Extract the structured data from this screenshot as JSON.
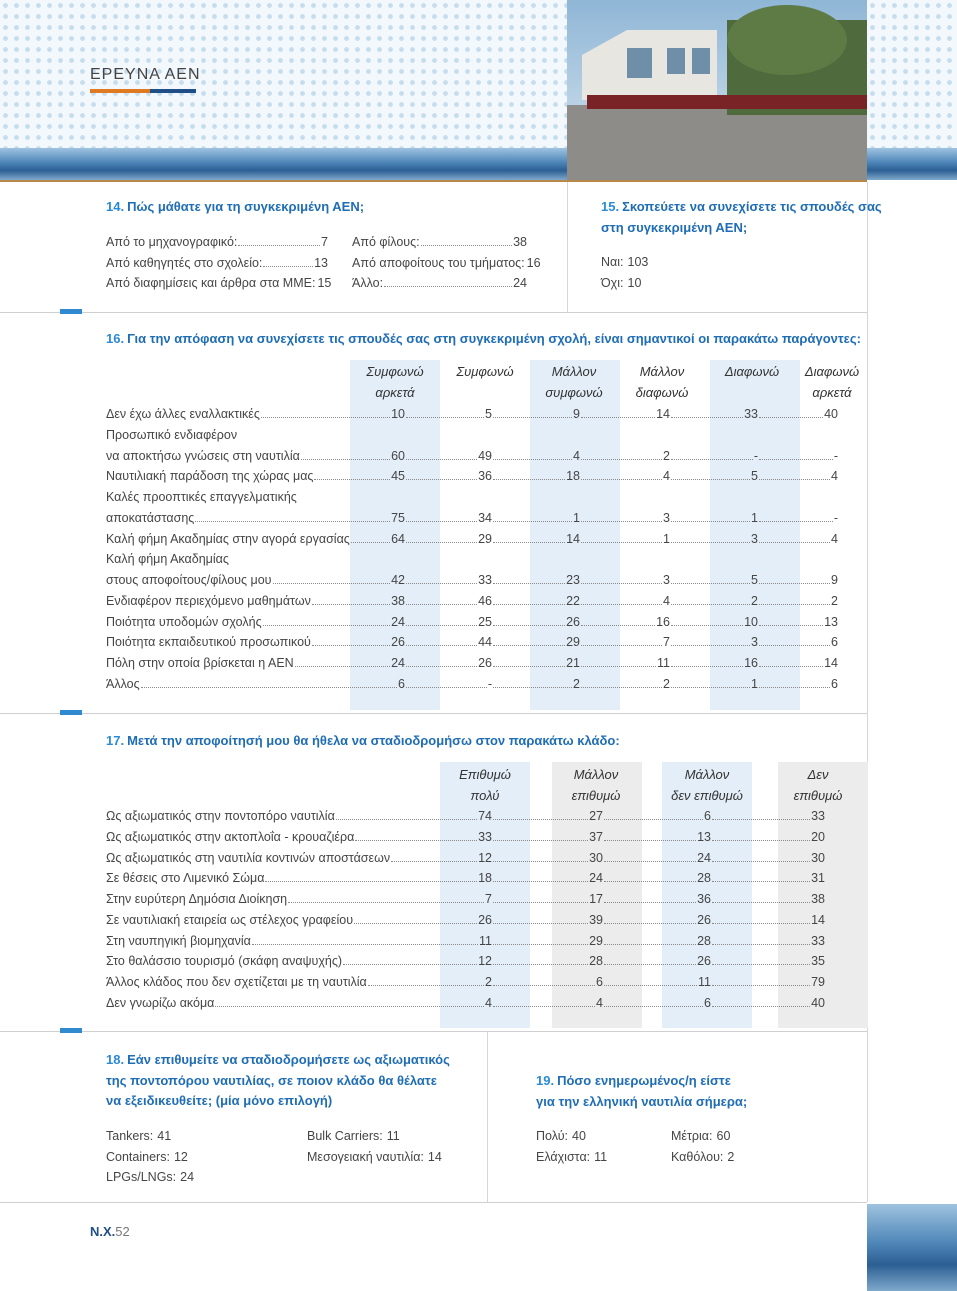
{
  "header": {
    "section": "ΕΡΕΥΝΑ ΑΕΝ"
  },
  "q14": {
    "number": "14.",
    "title": "Πώς μάθατε για τη συγκεκριμένη ΑΕΝ;",
    "columns": [
      [
        {
          "label": "Από το μηχανογραφικό:",
          "value": 7
        },
        {
          "label": "Από καθηγητές στο σχολείο:",
          "value": 13
        },
        {
          "label": "Από διαφημίσεις και άρθρα στα ΜΜΕ:",
          "value": 15
        }
      ],
      [
        {
          "label": "Από φίλους:",
          "value": 38
        },
        {
          "label": "Από αποφοίτους του τμήματος:",
          "value": 16
        },
        {
          "label": "Άλλο:",
          "value": 24
        }
      ]
    ]
  },
  "q15": {
    "number": "15.",
    "title": [
      "Σκοπεύετε να συνεχίσετε τις σπουδές σας",
      "στη συγκεκριμένη ΑΕΝ;"
    ],
    "answers": [
      {
        "label": "Ναι:",
        "value": 103
      },
      {
        "label": "Όχι:",
        "value": 10
      }
    ]
  },
  "q16": {
    "number": "16.",
    "title": "Για την  απόφαση να συνεχίσετε τις σπουδές σας στη συγκεκριμένη σχολή, είναι σημαντικοί οι παρακάτω παράγοντες:",
    "columns": [
      [
        "Συμφωνώ",
        "αρκετά"
      ],
      [
        "Συμφωνώ"
      ],
      [
        "Μάλλον",
        "συμφωνώ"
      ],
      [
        "Μάλλον",
        "διαφωνώ"
      ],
      [
        "Διαφωνώ"
      ],
      [
        "Διαφωνώ",
        "αρκετά"
      ]
    ],
    "rows": [
      {
        "label": [
          "Δεν έχω άλλες εναλλακτικές"
        ],
        "values": [
          10,
          5,
          9,
          14,
          33,
          40
        ]
      },
      {
        "label": [
          "Προσωπικό ενδιαφέρον",
          "να αποκτήσω γνώσεις στη ναυτιλία"
        ],
        "values": [
          60,
          49,
          4,
          2,
          "-",
          "-"
        ]
      },
      {
        "label": [
          "Ναυτιλιακή παράδοση της χώρας μας"
        ],
        "values": [
          45,
          36,
          18,
          4,
          5,
          4
        ]
      },
      {
        "label": [
          "Καλές προοπτικές επαγγελματικής",
          "αποκατάστασης"
        ],
        "values": [
          75,
          34,
          1,
          3,
          1,
          "-"
        ]
      },
      {
        "label": [
          "Καλή φήμη Ακαδημίας στην αγορά εργασίας"
        ],
        "values": [
          64,
          29,
          14,
          1,
          3,
          4
        ]
      },
      {
        "label": [
          "Καλή φήμη Ακαδημίας",
          "στους αποφοίτους/φίλους μου"
        ],
        "values": [
          42,
          33,
          23,
          3,
          5,
          9
        ]
      },
      {
        "label": [
          "Ενδιαφέρον περιεχόμενο μαθημάτων"
        ],
        "values": [
          38,
          46,
          22,
          4,
          2,
          2
        ]
      },
      {
        "label": [
          "Ποιότητα υποδομών σχολής"
        ],
        "values": [
          24,
          25,
          26,
          16,
          10,
          13
        ]
      },
      {
        "label": [
          "Ποιότητα εκπαιδευτικού προσωπικού"
        ],
        "values": [
          26,
          44,
          29,
          7,
          3,
          6
        ]
      },
      {
        "label": [
          "Πόλη στην οποία βρίσκεται η ΑΕΝ"
        ],
        "values": [
          24,
          26,
          21,
          11,
          16,
          14
        ]
      },
      {
        "label": [
          "Άλλος"
        ],
        "values": [
          6,
          "-",
          2,
          2,
          1,
          6
        ]
      }
    ]
  },
  "q17": {
    "number": "17.",
    "title": "Μετά την αποφοίτησή μου θα ήθελα να σταδιοδρομήσω στον παρακάτω κλάδο:",
    "columns": [
      [
        "Επιθυμώ",
        "πολύ"
      ],
      [
        "Μάλλον",
        "επιθυμώ"
      ],
      [
        "Μάλλον",
        "δεν επιθυμώ"
      ],
      [
        "Δεν",
        "επιθυμώ"
      ]
    ],
    "rows": [
      {
        "label": [
          "Ως αξιωματικός στην ποντοπόρο ναυτιλία"
        ],
        "values": [
          74,
          27,
          6,
          33
        ]
      },
      {
        "label": [
          "Ως αξιωματικός στην ακτοπλοΐα - κρουαζιέρα"
        ],
        "values": [
          33,
          37,
          13,
          20
        ]
      },
      {
        "label": [
          "Ως αξιωματικός στη ναυτιλία κοντινών αποστάσεων"
        ],
        "values": [
          12,
          30,
          24,
          30
        ]
      },
      {
        "label": [
          "Σε θέσεις στο Λιμενικό Σώμα"
        ],
        "values": [
          18,
          24,
          28,
          31
        ]
      },
      {
        "label": [
          "Στην ευρύτερη Δημόσια Διοίκηση"
        ],
        "values": [
          7,
          17,
          36,
          38
        ]
      },
      {
        "label": [
          "Σε ναυτιλιακή εταιρεία ως στέλεχος γραφείου"
        ],
        "values": [
          26,
          39,
          26,
          14
        ]
      },
      {
        "label": [
          "Στη ναυπηγική βιομηχανία"
        ],
        "values": [
          11,
          29,
          28,
          33
        ]
      },
      {
        "label": [
          "Στο θαλάσσιο τουρισμό (σκάφη αναψυχής)"
        ],
        "values": [
          12,
          28,
          26,
          35
        ]
      },
      {
        "label": [
          "Άλλος κλάδος που δεν σχετίζεται με τη ναυτιλία"
        ],
        "values": [
          2,
          6,
          11,
          79
        ]
      },
      {
        "label": [
          "Δεν γνωρίζω ακόμα"
        ],
        "values": [
          4,
          4,
          6,
          40
        ]
      }
    ]
  },
  "q18": {
    "number": "18.",
    "title": [
      "Εάν επιθυμείτε να σταδιοδρομήσετε ως αξιωματικός",
      "της ποντοπόρου ναυτιλίας, σε ποιον κλάδο θα θέλατε",
      "να εξειδικευθείτε; (μία μόνο επιλογή)"
    ],
    "columns": [
      [
        {
          "label": "Tankers:",
          "value": 41
        },
        {
          "label": "Containers:",
          "value": 12
        },
        {
          "label": "LPGs/LNGs:",
          "value": 24
        }
      ],
      [
        {
          "label": "Bulk Carriers:",
          "value": 11
        },
        {
          "label": "Μεσογειακή ναυτιλία:",
          "value": 14
        }
      ]
    ]
  },
  "q19": {
    "number": "19.",
    "title": [
      "Πόσο ενημερωμένος/η είστε",
      "για την ελληνική ναυτιλία σήμερα;"
    ],
    "columns": [
      [
        {
          "label": "Πολύ:",
          "value": 40
        },
        {
          "label": "Ελάχιστα:",
          "value": 11
        }
      ],
      [
        {
          "label": "Μέτρια:",
          "value": 60
        },
        {
          "label": "Καθόλου:",
          "value": 2
        }
      ]
    ]
  },
  "footer": {
    "prefix": "Ν.Χ.",
    "page": 52
  }
}
